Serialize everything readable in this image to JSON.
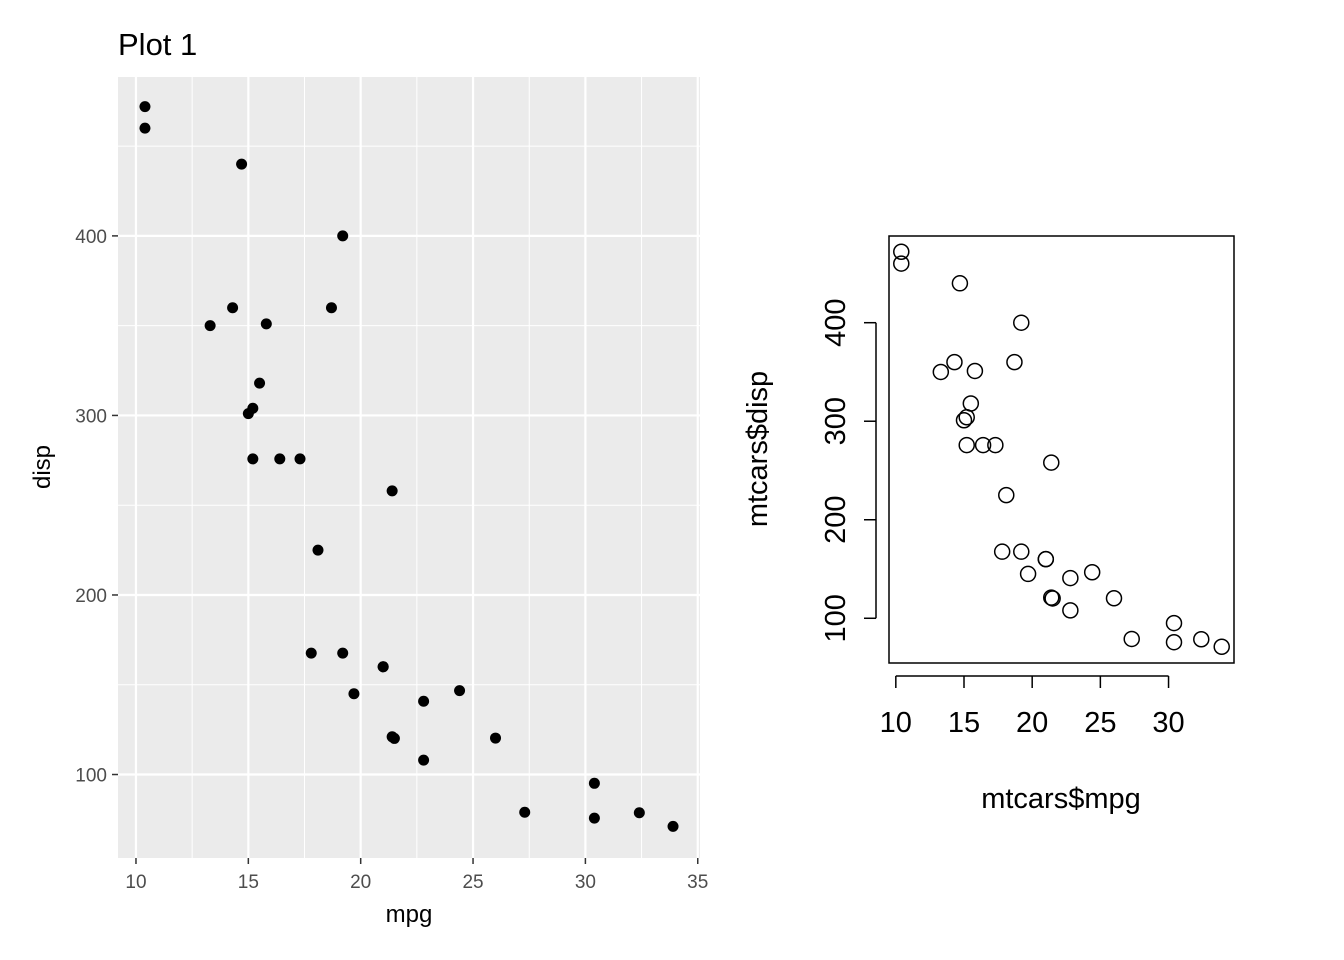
{
  "chart_data": [
    {
      "type": "scatter",
      "style": "ggplot2",
      "title": "Plot 1",
      "xlabel": "mpg",
      "ylabel": "disp",
      "xlim": [
        9.2,
        35.1
      ],
      "ylim": [
        53.5,
        488.5
      ],
      "xticks": [
        10,
        15,
        20,
        25,
        30,
        35
      ],
      "yticks": [
        100,
        200,
        300,
        400
      ],
      "grid": true,
      "colors": {
        "panel": "#ebebeb",
        "grid": "#ffffff",
        "point": "#000000"
      },
      "points": [
        [
          21.0,
          160
        ],
        [
          21.0,
          160
        ],
        [
          22.8,
          108
        ],
        [
          21.4,
          258
        ],
        [
          18.7,
          360
        ],
        [
          18.1,
          225
        ],
        [
          14.3,
          360
        ],
        [
          24.4,
          146.7
        ],
        [
          22.8,
          140.8
        ],
        [
          19.2,
          167.6
        ],
        [
          17.8,
          167.6
        ],
        [
          16.4,
          275.8
        ],
        [
          17.3,
          275.8
        ],
        [
          15.2,
          275.8
        ],
        [
          10.4,
          472
        ],
        [
          10.4,
          460
        ],
        [
          14.7,
          440
        ],
        [
          32.4,
          78.7
        ],
        [
          30.4,
          75.7
        ],
        [
          33.9,
          71.1
        ],
        [
          21.5,
          120.1
        ],
        [
          15.5,
          318
        ],
        [
          15.2,
          304
        ],
        [
          13.3,
          350
        ],
        [
          19.2,
          400
        ],
        [
          27.3,
          79
        ],
        [
          26.0,
          120.3
        ],
        [
          30.4,
          95.1
        ],
        [
          15.8,
          351
        ],
        [
          19.7,
          145
        ],
        [
          15.0,
          301
        ],
        [
          21.4,
          121
        ]
      ]
    },
    {
      "type": "scatter",
      "style": "base",
      "title": "",
      "xlabel": "mtcars$mpg",
      "ylabel": "mtcars$disp",
      "xlim": [
        9.5,
        34.8
      ],
      "ylim": [
        54.6,
        488.0
      ],
      "xticks": [
        10,
        15,
        20,
        25,
        30
      ],
      "yticks": [
        100,
        200,
        300,
        400
      ],
      "grid": false,
      "colors": {
        "point": "#000000",
        "box": "#000000"
      },
      "points": [
        [
          21.0,
          160
        ],
        [
          21.0,
          160
        ],
        [
          22.8,
          108
        ],
        [
          21.4,
          258
        ],
        [
          18.7,
          360
        ],
        [
          18.1,
          225
        ],
        [
          14.3,
          360
        ],
        [
          24.4,
          146.7
        ],
        [
          22.8,
          140.8
        ],
        [
          19.2,
          167.6
        ],
        [
          17.8,
          167.6
        ],
        [
          16.4,
          275.8
        ],
        [
          17.3,
          275.8
        ],
        [
          15.2,
          275.8
        ],
        [
          10.4,
          472
        ],
        [
          10.4,
          460
        ],
        [
          14.7,
          440
        ],
        [
          32.4,
          78.7
        ],
        [
          30.4,
          75.7
        ],
        [
          33.9,
          71.1
        ],
        [
          21.5,
          120.1
        ],
        [
          15.5,
          318
        ],
        [
          15.2,
          304
        ],
        [
          13.3,
          350
        ],
        [
          19.2,
          400
        ],
        [
          27.3,
          79
        ],
        [
          26.0,
          120.3
        ],
        [
          30.4,
          95.1
        ],
        [
          15.8,
          351
        ],
        [
          19.7,
          145
        ],
        [
          15.0,
          301
        ],
        [
          21.4,
          121
        ]
      ]
    }
  ]
}
